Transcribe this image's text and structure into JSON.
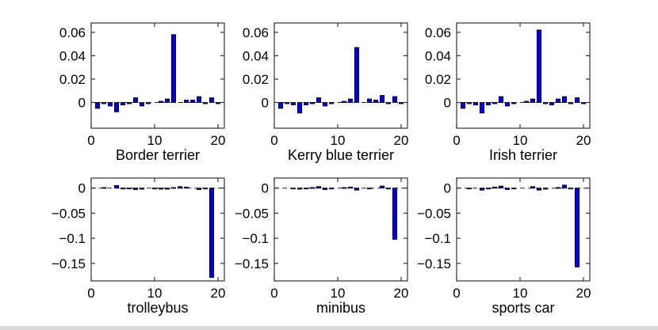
{
  "figure": {
    "background": "#ffffff",
    "bottom_band_color": "#d8d8d8",
    "axis_color": "#333333"
  },
  "chart_data": [
    {
      "type": "bar",
      "xlabel": "Border terrier",
      "x": [
        1,
        2,
        3,
        4,
        5,
        6,
        7,
        8,
        9,
        10,
        11,
        12,
        13,
        14,
        15,
        16,
        17,
        18,
        19,
        20
      ],
      "values": [
        -0.005,
        -0.001,
        -0.003,
        -0.008,
        -0.002,
        -0.001,
        0.004,
        -0.003,
        -0.001,
        0,
        0.001,
        0.003,
        0.058,
        0,
        0.002,
        0.002,
        0.005,
        -0.001,
        0.004,
        -0.001
      ],
      "xlim": [
        0,
        21
      ],
      "ylim": [
        -0.022,
        0.068
      ],
      "xticks": [
        0,
        10,
        20
      ],
      "yticks": [
        0.06,
        0.04,
        0.02,
        0
      ],
      "ytick_labels": [
        "0.06",
        "0.04",
        "0.02",
        "0"
      ],
      "bar_color": "#0000dd",
      "bar_edge_color": "#00001a",
      "zero_line": "dashed",
      "grid": false,
      "legend": null
    },
    {
      "type": "bar",
      "xlabel": "Kerry blue terrier",
      "x": [
        1,
        2,
        3,
        4,
        5,
        6,
        7,
        8,
        9,
        10,
        11,
        12,
        13,
        14,
        15,
        16,
        17,
        18,
        19,
        20
      ],
      "values": [
        -0.005,
        -0.001,
        -0.002,
        -0.009,
        -0.002,
        -0.001,
        0.004,
        -0.003,
        -0.001,
        0,
        0.001,
        0.003,
        0.047,
        0,
        0.003,
        0.002,
        0.006,
        -0.001,
        0.005,
        -0.001
      ],
      "xlim": [
        0,
        21
      ],
      "ylim": [
        -0.022,
        0.068
      ],
      "xticks": [
        0,
        10,
        20
      ],
      "yticks": [
        0.06,
        0.04,
        0.02,
        0
      ],
      "ytick_labels": [
        "0.06",
        "0.04",
        "0.02",
        "0"
      ],
      "bar_color": "#0000dd",
      "bar_edge_color": "#00001a",
      "zero_line": "dashed",
      "grid": false,
      "legend": null
    },
    {
      "type": "bar",
      "xlabel": "Irish terrier",
      "x": [
        1,
        2,
        3,
        4,
        5,
        6,
        7,
        8,
        9,
        10,
        11,
        12,
        13,
        14,
        15,
        16,
        17,
        18,
        19,
        20
      ],
      "values": [
        -0.005,
        -0.001,
        -0.002,
        -0.009,
        -0.002,
        -0.001,
        0.005,
        -0.003,
        -0.001,
        0,
        0.001,
        0.003,
        0.062,
        -0.001,
        -0.002,
        0.003,
        0.005,
        -0.001,
        0.004,
        -0.001
      ],
      "xlim": [
        0,
        21
      ],
      "ylim": [
        -0.022,
        0.068
      ],
      "xticks": [
        0,
        10,
        20
      ],
      "yticks": [
        0.06,
        0.04,
        0.02,
        0
      ],
      "ytick_labels": [
        "0.06",
        "0.04",
        "0.02",
        "0"
      ],
      "bar_color": "#0000dd",
      "bar_edge_color": "#00001a",
      "zero_line": "dashed",
      "grid": false,
      "legend": null
    },
    {
      "type": "bar",
      "xlabel": "trolleybus",
      "x": [
        1,
        2,
        3,
        4,
        5,
        6,
        7,
        8,
        9,
        10,
        11,
        12,
        13,
        14,
        15,
        16,
        17,
        18,
        19,
        20
      ],
      "values": [
        0,
        0.001,
        0,
        0.005,
        -0.001,
        -0.001,
        -0.003,
        -0.002,
        0,
        -0.001,
        -0.002,
        -0.002,
        0.001,
        0.003,
        0.002,
        0,
        -0.003,
        -0.001,
        -0.178,
        0
      ],
      "xlim": [
        0,
        21
      ],
      "ylim": [
        -0.185,
        0.02
      ],
      "xticks": [
        0,
        10,
        20
      ],
      "yticks": [
        0,
        -0.05,
        -0.1,
        -0.15
      ],
      "ytick_labels": [
        "0",
        "−0.05",
        "−0.1",
        "−0.15"
      ],
      "bar_color": "#0000dd",
      "bar_edge_color": "#00001a",
      "zero_line": "dashed",
      "grid": false,
      "legend": null
    },
    {
      "type": "bar",
      "xlabel": "minibus",
      "x": [
        1,
        2,
        3,
        4,
        5,
        6,
        7,
        8,
        9,
        10,
        11,
        12,
        13,
        14,
        15,
        16,
        17,
        18,
        19,
        20
      ],
      "values": [
        0,
        0,
        -0.001,
        -0.002,
        -0.001,
        0.001,
        0.003,
        -0.003,
        -0.001,
        0,
        0.001,
        0.002,
        -0.004,
        0,
        -0.001,
        0,
        0.004,
        -0.001,
        -0.102,
        0
      ],
      "xlim": [
        0,
        21
      ],
      "ylim": [
        -0.185,
        0.02
      ],
      "xticks": [
        0,
        10,
        20
      ],
      "yticks": [
        0,
        -0.05,
        -0.1,
        -0.15
      ],
      "ytick_labels": [
        "0",
        "−0.05",
        "−0.1",
        "−0.15"
      ],
      "bar_color": "#0000dd",
      "bar_edge_color": "#00001a",
      "zero_line": "dashed",
      "grid": false,
      "legend": null
    },
    {
      "type": "bar",
      "xlabel": "sports car",
      "x": [
        1,
        2,
        3,
        4,
        5,
        6,
        7,
        8,
        9,
        10,
        11,
        12,
        13,
        14,
        15,
        16,
        17,
        18,
        19,
        20
      ],
      "values": [
        0,
        -0.001,
        0,
        -0.004,
        -0.001,
        0.002,
        0.004,
        -0.003,
        -0.001,
        0,
        0,
        0.003,
        -0.004,
        -0.002,
        0,
        0.001,
        0.006,
        -0.001,
        -0.157,
        0
      ],
      "xlim": [
        0,
        21
      ],
      "ylim": [
        -0.185,
        0.02
      ],
      "xticks": [
        0,
        10,
        20
      ],
      "yticks": [
        0,
        -0.05,
        -0.1,
        -0.15
      ],
      "ytick_labels": [
        "0",
        "−0.05",
        "−0.1",
        "−0.15"
      ],
      "bar_color": "#0000dd",
      "bar_edge_color": "#00001a",
      "zero_line": "dashed",
      "grid": false,
      "legend": null
    }
  ]
}
